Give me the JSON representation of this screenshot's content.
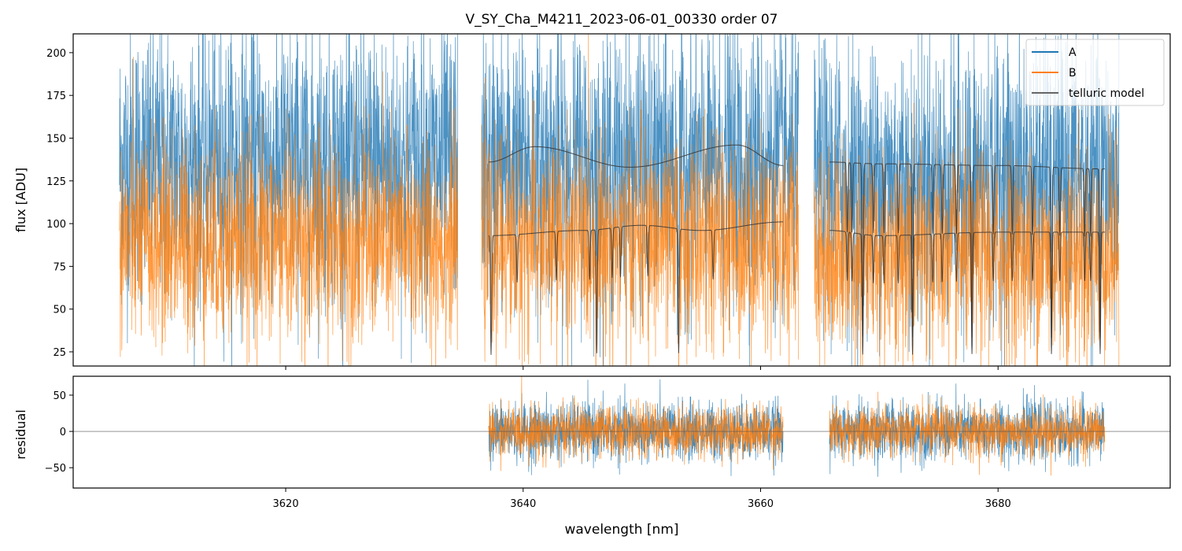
{
  "chart_data": {
    "type": "line",
    "title": "V_SY_Cha_M4211_2023-06-01_00330  order 07",
    "xlabel": "wavelength [nm]",
    "xlim": [
      3602.1,
      3694.5
    ],
    "x_ticks": [
      "3620",
      "3640",
      "3660",
      "3680"
    ],
    "x_tick_values": [
      3620,
      3640,
      3660,
      3680
    ],
    "panels": [
      {
        "name": "flux",
        "ylabel": "flux [ADU]",
        "ylim": [
          16.7,
          211
        ],
        "y_ticks": [
          "25",
          "50",
          "75",
          "100",
          "125",
          "150",
          "175",
          "200"
        ],
        "y_tick_values": [
          25,
          50,
          75,
          100,
          125,
          150,
          175,
          200
        ],
        "legend": {
          "placement": "top-right",
          "entries": [
            "A",
            "B",
            "telluric model"
          ]
        },
        "series": [
          {
            "name": "A",
            "color": "#1f77b4",
            "segments": [
              [
                3606.0,
                3634.5
              ],
              [
                3636.5,
                3663.2
              ],
              [
                3664.5,
                3690.2
              ]
            ],
            "approx_level": 135,
            "approx_scatter": 40
          },
          {
            "name": "B",
            "color": "#ff7f0e",
            "segments": [
              [
                3606.0,
                3634.5
              ],
              [
                3636.5,
                3663.2
              ],
              [
                3664.5,
                3690.2
              ]
            ],
            "approx_level": 90,
            "approx_scatter": 30
          },
          {
            "name": "telluric model (A)",
            "color": "#333333",
            "segments": [
              [
                3637.1,
                3661.9
              ],
              [
                3665.8,
                3689.0
              ]
            ],
            "continuum_points": [
              [
                3637.1,
                136
              ],
              [
                3641,
                145
              ],
              [
                3649,
                133
              ],
              [
                3658,
                146
              ],
              [
                3661.9,
                134
              ],
              [
                3665.8,
                136
              ],
              [
                3670,
                135
              ],
              [
                3680,
                134
              ],
              [
                3689,
                132
              ]
            ]
          },
          {
            "name": "telluric model (B)",
            "color": "#333333",
            "segments": [
              [
                3637.1,
                3661.9
              ],
              [
                3665.8,
                3689.0
              ]
            ],
            "continuum_points": [
              [
                3637.1,
                93
              ],
              [
                3645,
                96
              ],
              [
                3650,
                99
              ],
              [
                3655,
                96
              ],
              [
                3661.9,
                101
              ],
              [
                3665.8,
                96
              ],
              [
                3670,
                93
              ],
              [
                3680,
                95
              ],
              [
                3689,
                95
              ]
            ]
          }
        ],
        "telluric_lines_nm": [
          3637.3,
          3639.5,
          3642.8,
          3645.6,
          3646.2,
          3647.5,
          3648.2,
          3650.5,
          3653.1,
          3656.0,
          3667.3,
          3667.7,
          3668.6,
          3669.5,
          3670.4,
          3671.6,
          3672.8,
          3674.5,
          3675.3,
          3676.5,
          3677.8,
          3679.6,
          3681.2,
          3682.9,
          3684.5,
          3685.2,
          3687.3,
          3687.8,
          3688.6
        ]
      },
      {
        "name": "residual",
        "ylabel": "residual",
        "ylim": [
          -78,
          76
        ],
        "y_ticks": [
          "50",
          "0",
          "−50"
        ],
        "y_tick_values": [
          50,
          0,
          -50
        ],
        "zero_line": true,
        "series": [
          {
            "name": "A residual",
            "color": "#1f77b4",
            "segments": [
              [
                3637.1,
                3661.9
              ],
              [
                3665.8,
                3689.0
              ]
            ],
            "approx_scatter": 20
          },
          {
            "name": "B residual",
            "color": "#ff7f0e",
            "segments": [
              [
                3637.1,
                3661.9
              ],
              [
                3665.8,
                3689.0
              ]
            ],
            "approx_scatter": 18
          }
        ]
      }
    ]
  }
}
